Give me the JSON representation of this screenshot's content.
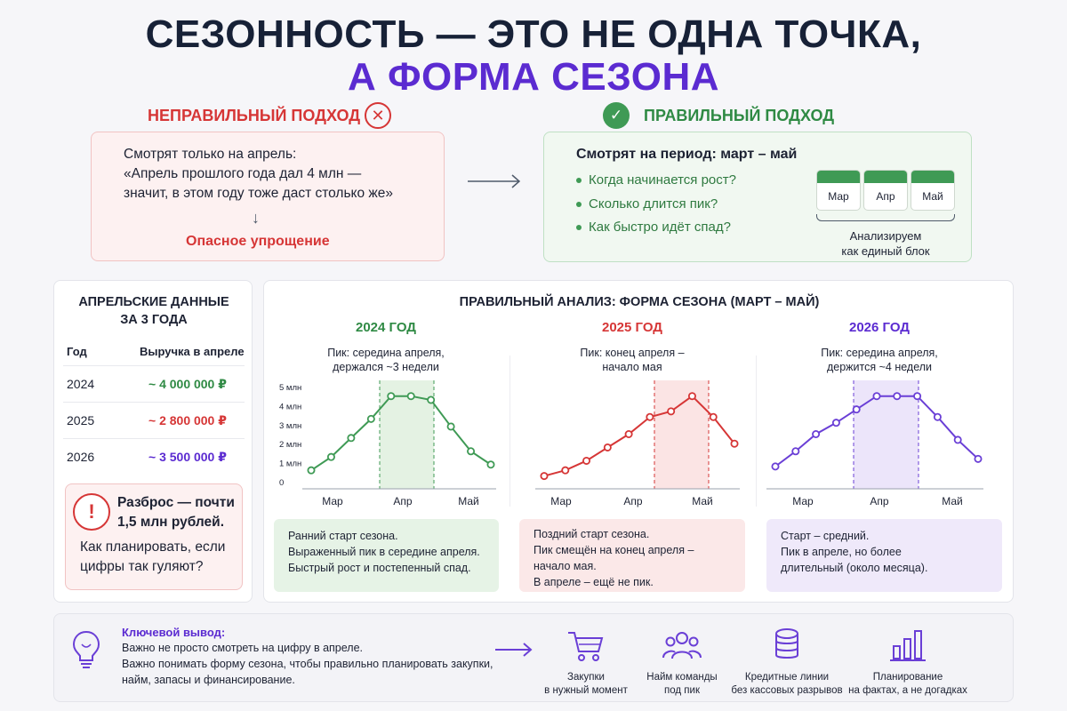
{
  "title": {
    "line1": "СЕЗОННОСТЬ — ЭТО НЕ ОДНА ТОЧКА,",
    "line2": "А ФОРМА СЕЗОНА"
  },
  "wrong": {
    "header": "НЕПРАВИЛЬНЫЙ ПОДХОД",
    "lines": [
      "Смотрят только на апрель:",
      "«Апрель прошлого года дал 4 млн —",
      "значит, в этом году тоже даст столько же»"
    ],
    "danger": "Опасное упрощение"
  },
  "right": {
    "header": "ПРАВИЛЬНЫЙ ПОДХОД",
    "head": "Смотрят на период: март – май",
    "items": [
      "Когда начинается рост?",
      "Сколько длится пик?",
      "Как быстро идёт спад?"
    ],
    "calendar": [
      "Мар",
      "Апр",
      "Май"
    ],
    "caption1": "Анализируем",
    "caption2": "как единый блок"
  },
  "april": {
    "title1": "АПРЕЛЬСКИЕ ДАННЫЕ",
    "title2": "ЗА 3 ГОДА",
    "col_year": "Год",
    "col_rev": "Выручка в апреле",
    "rows": [
      {
        "year": "2024",
        "value": "~ 4 000 000 ₽",
        "color": "#2f8a44"
      },
      {
        "year": "2025",
        "value": "~ 2 800 000 ₽",
        "color": "#d63636"
      },
      {
        "year": "2026",
        "value": "~ 3 500 000 ₽",
        "color": "#5b2bd1"
      }
    ],
    "alert_b1": "Разброс — почти",
    "alert_b2": "1,5 млн рублей.",
    "alert_t1": "Как планировать, если",
    "alert_t2": "цифры так гуляют?"
  },
  "analysis": {
    "title": "ПРАВИЛЬНЫЙ АНАЛИЗ: ФОРМА СЕЗОНА (МАРТ – МАЙ)",
    "months": [
      "Мар",
      "Апр",
      "Май"
    ],
    "yticks": [
      "5 млн",
      "4 млн",
      "3 млн",
      "2 млн",
      "1 млн",
      "0"
    ],
    "years": [
      {
        "year": "2024 ГОД",
        "peak1": "Пик: середина апреля,",
        "peak2": "держался ~3 недели",
        "notes": [
          "Ранний старт сезона.",
          "Выраженный пик в середине апреля.",
          "Быстрый рост и постепенный спад."
        ]
      },
      {
        "year": "2025 ГОД",
        "peak1": "Пик: конец апреля –",
        "peak2": "начало мая",
        "notes": [
          "Поздний старт сезона.",
          "Пик смещён на конец апреля –",
          "начало мая.",
          "В апреле – ещё не пик."
        ]
      },
      {
        "year": "2026 ГОД",
        "peak1": "Пик: середина апреля,",
        "peak2": "держится ~4 недели",
        "notes": [
          "Старт – средний.",
          "Пик в апреле, но более",
          "длительный (около месяца)."
        ]
      }
    ]
  },
  "chart_data": [
    {
      "type": "line",
      "title": "2024 ГОД",
      "ylabel": "",
      "ylim": [
        0,
        5
      ],
      "xticks": [
        "Мар",
        "Апр",
        "Май"
      ],
      "color": "#3f9a55",
      "series": [
        {
          "values": [
            0.6,
            1.3,
            2.3,
            3.3,
            4.5,
            4.5,
            4.3,
            2.9,
            1.6,
            0.9
          ]
        }
      ]
    },
    {
      "type": "line",
      "title": "2025 ГОД",
      "ylabel": "",
      "ylim": [
        0,
        5
      ],
      "xticks": [
        "Мар",
        "Апр",
        "Май"
      ],
      "color": "#d63636",
      "series": [
        {
          "values": [
            0.3,
            0.6,
            1.1,
            1.8,
            2.5,
            3.4,
            3.7,
            4.5,
            3.4,
            2.0
          ]
        }
      ]
    },
    {
      "type": "line",
      "title": "2026 ГОД",
      "ylabel": "",
      "ylim": [
        0,
        5
      ],
      "xticks": [
        "Мар",
        "Апр",
        "Май"
      ],
      "color": "#6a3fd6",
      "series": [
        {
          "values": [
            0.8,
            1.6,
            2.5,
            3.1,
            3.8,
            4.5,
            4.5,
            4.5,
            3.4,
            2.2,
            1.2
          ]
        }
      ]
    }
  ],
  "key": {
    "title": "Ключевой вывод:",
    "line1": "Важно не просто смотреть на цифру в апреле.",
    "line2": "Важно понимать форму сезона, чтобы правильно планировать закупки,",
    "line3": "найм, запасы и финансирование."
  },
  "benefits": [
    {
      "icon": "shopping-cart-icon",
      "l1": "Закупки",
      "l2": "в нужный момент"
    },
    {
      "icon": "team-icon",
      "l1": "Найм команды",
      "l2": "под пик"
    },
    {
      "icon": "coins-icon",
      "l1": "Кредитные линии",
      "l2": "без кассовых разрывов"
    },
    {
      "icon": "bar-chart-icon",
      "l1": "Планирование",
      "l2": "на фактах, а не догадках"
    }
  ]
}
